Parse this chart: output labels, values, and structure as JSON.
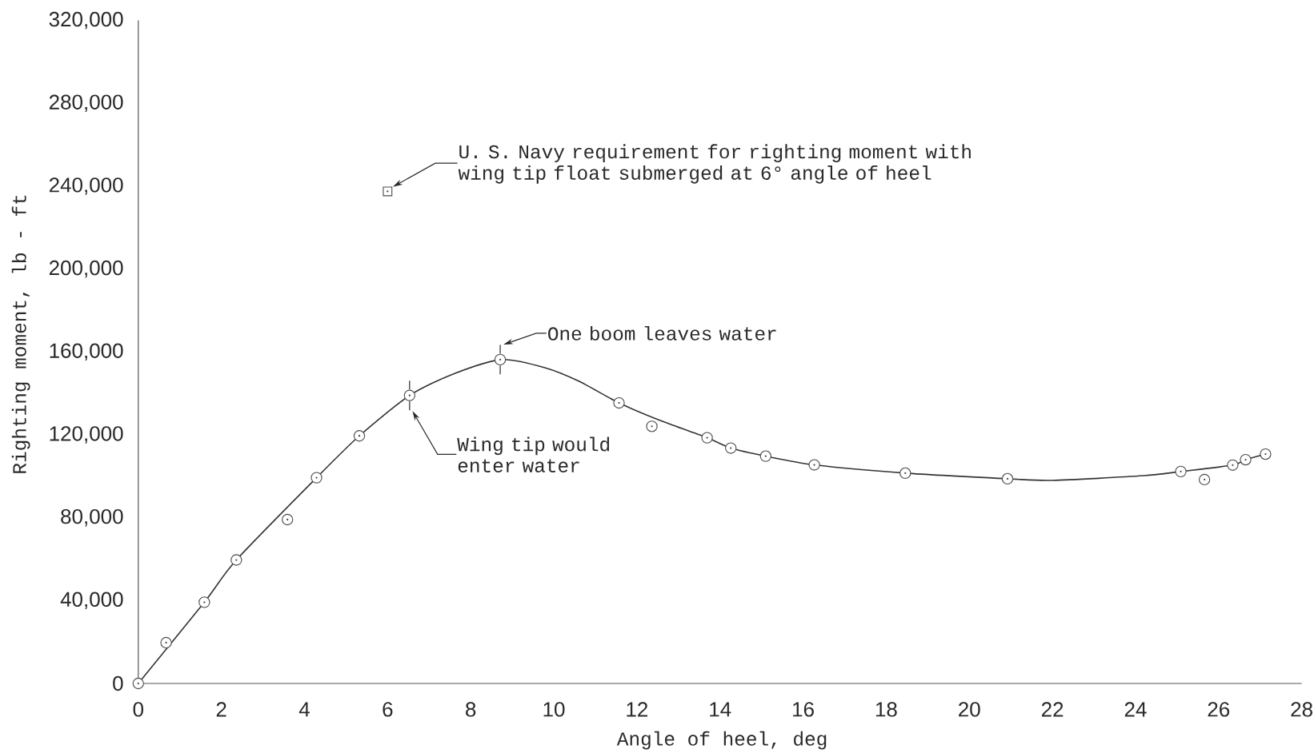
{
  "chart_data": {
    "type": "scatter",
    "xlabel": "Angle of heel, deg",
    "ylabel": "Righting moment, lb - ft",
    "xlim": [
      0,
      28
    ],
    "ylim": [
      0,
      320000
    ],
    "xticks": [
      0,
      2,
      4,
      6,
      8,
      10,
      12,
      14,
      16,
      18,
      20,
      22,
      24,
      26,
      28
    ],
    "yticks": [
      0,
      {
        "value": 40000,
        "label": "40,000"
      },
      {
        "value": 80000,
        "label": "80,000"
      },
      {
        "value": 120000,
        "label": "120,000"
      },
      {
        "value": 160000,
        "label": "160,000"
      },
      {
        "value": 200000,
        "label": "200,000"
      },
      {
        "value": 240000,
        "label": "240,000"
      },
      {
        "value": 280000,
        "label": "280,000"
      },
      {
        "value": 320000,
        "label": "320,000"
      }
    ],
    "series": [
      {
        "marker": "circle",
        "color": "#4a4a4a",
        "x": [
          0,
          0.67,
          1.59,
          2.36,
          3.59,
          4.29,
          5.32,
          6.53,
          8.71,
          11.57,
          12.36,
          13.69,
          14.26,
          15.1,
          16.27,
          18.46,
          20.92,
          25.09,
          25.66,
          26.34,
          26.65,
          27.13
        ],
        "values": [
          0,
          19700,
          39200,
          59600,
          79100,
          99300,
          119500,
          139000,
          156300,
          135400,
          124100,
          118600,
          113600,
          109700,
          105500,
          101500,
          98800,
          102300,
          98400,
          105400,
          108000,
          110700
        ]
      },
      {
        "type": "line",
        "marker": "none",
        "color": "#333333",
        "x": [
          0,
          1.59,
          2.36,
          4.29,
          5.32,
          6.53,
          7.6,
          8.75,
          9.8,
          10.6,
          11.57,
          12.6,
          13.69,
          14.26,
          15.1,
          16.27,
          18.46,
          20.92,
          22,
          24.2,
          25.09,
          26.34,
          26.65,
          27.13
        ],
        "values": [
          0,
          39200,
          59600,
          99300,
          119500,
          139000,
          149500,
          156300,
          152300,
          145900,
          135400,
          126600,
          118600,
          113600,
          109700,
          105500,
          101500,
          98800,
          98000,
          100300,
          102300,
          105400,
          108000,
          110700
        ]
      },
      {
        "marker": "square",
        "color": "#4a4a4a",
        "x": [
          6
        ],
        "values": [
          237500
        ]
      }
    ],
    "annotations": [
      "U. S. Navy requirement for righting moment with wing tip float submerged at 6° angle of heel",
      {
        "text": "One boom leaves water",
        "x": 8.71,
        "y": 156300
      },
      "Wing tip would enter water"
    ]
  }
}
